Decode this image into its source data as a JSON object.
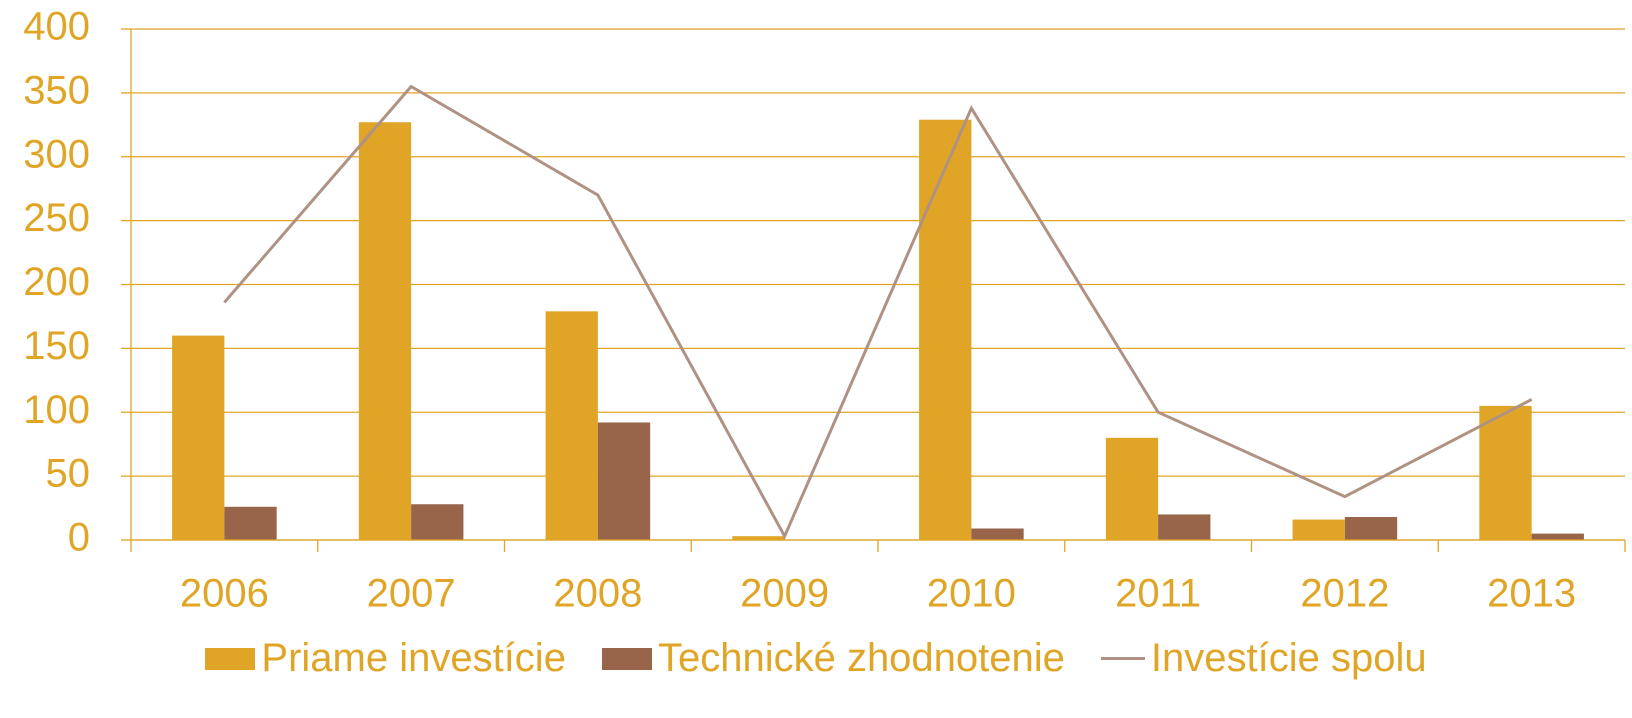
{
  "chart_data": {
    "type": "bar",
    "categories": [
      "2006",
      "2007",
      "2008",
      "2009",
      "2010",
      "2011",
      "2012",
      "2013"
    ],
    "series": [
      {
        "name": "Priame investície",
        "type": "bar",
        "color": "#e0a526",
        "values": [
          160,
          327,
          179,
          3,
          329,
          80,
          16,
          105
        ]
      },
      {
        "name": "Technické zhodnotenie",
        "type": "bar",
        "color": "#98644a",
        "values": [
          26,
          28,
          92,
          0,
          9,
          20,
          18,
          5
        ]
      },
      {
        "name": "Investície spolu",
        "type": "line",
        "color": "#b09284",
        "values": [
          186,
          355,
          270,
          3,
          338,
          100,
          34,
          110
        ]
      }
    ],
    "ylim": [
      0,
      400
    ],
    "yticks": [
      0,
      50,
      100,
      150,
      200,
      250,
      300,
      350,
      400
    ],
    "grid": true,
    "legend": "bottom"
  }
}
